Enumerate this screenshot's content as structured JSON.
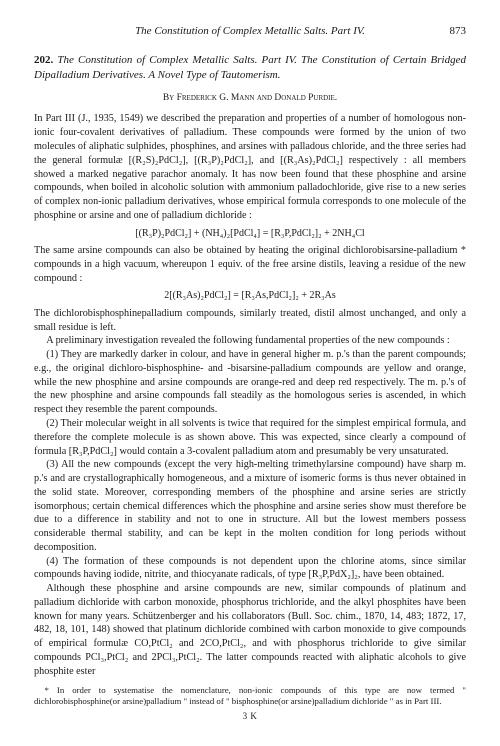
{
  "header": {
    "running_title": "The Constitution of Complex Metallic Salts. Part IV.",
    "page_number": "873"
  },
  "article": {
    "number": "202.",
    "title": "The Constitution of Complex Metallic Salts. Part IV. The Constitution of Certain Bridged Dipalladium Derivatives. A Novel Type of Tautomerism.",
    "authors": "By Frederick G. Mann and Donald Purdie."
  },
  "body": {
    "p1": "In Part III (J., 1935, 1549) we described the preparation and properties of a number of homologous non-ionic four-covalent derivatives of palladium. These compounds were formed by the union of two molecules of aliphatic sulphides, phosphines, and arsines with palladous chloride, and the three series had the general formulæ [(R₂S)₂PdCl₂], [(R₃P)₂PdCl₂], and [(R₃As)₂PdCl₂] respectively : all members showed a marked negative parachor anomaly. It has now been found that these phosphine and arsine compounds, when boiled in alcoholic solution with ammonium palladochloride, give rise to a new series of complex non-ionic palladium derivatives, whose empirical formula corresponds to one molecule of the phosphine or arsine and one of palladium dichloride :",
    "f1": "[(R₃P)₂PdCl₂] + (NH₄)₂[PdCl₄] = [R₃P,PdCl₂]₂ + 2NH₄Cl",
    "p2": "The same arsine compounds can also be obtained by heating the original dichlorobisarsine-palladium * compounds in a high vacuum, whereupon 1 equiv. of the free arsine distils, leaving a residue of the new compound :",
    "f2": "2[(R₃As)₂PdCl₂] = [R₃As,PdCl₂]₂ + 2R₃As",
    "p3": "The dichlorobisphosphinepalladium compounds, similarly treated, distil almost unchanged, and only a small residue is left.",
    "p4": "A preliminary investigation revealed the following fundamental properties of the new compounds :",
    "n1": "(1) They are markedly darker in colour, and have in general higher m. p.'s than the parent compounds; e.g., the original dichloro-bisphosphine- and -bisarsine-palladium compounds are yellow and orange, while the new phosphine and arsine compounds are orange-red and deep red respectively. The m. p.'s of the new phosphine and arsine compounds fall steadily as the homologous series is ascended, in which respect they resemble the parent compounds.",
    "n2": "(2) Their molecular weight in all solvents is twice that required for the simplest empirical formula, and therefore the complete molecule is as shown above. This was expected, since clearly a compound of formula [R₃P,PdCl₂] would contain a 3-covalent palladium atom and presumably be very unsaturated.",
    "n3": "(3) All the new compounds (except the very high-melting trimethylarsine compound) have sharp m. p.'s and are crystallographically homogeneous, and a mixture of isomeric forms is thus never obtained in the solid state. Moreover, corresponding members of the phosphine and arsine series are strictly isomorphous; certain chemical differences which the phosphine and arsine series show must therefore be due to a difference in stability and not to one in structure. All but the lowest members possess considerable thermal stability, and can be kept in the molten condition for long periods without decomposition.",
    "n4": "(4) The formation of these compounds is not dependent upon the chlorine atoms, since similar compounds having iodide, nitrite, and thiocyanate radicals, of type [R₃P,PdX₂]₂, have been obtained.",
    "p5": "Although these phosphine and arsine compounds are new, similar compounds of platinum and palladium dichloride with carbon monoxide, phosphorus trichloride, and the alkyl phosphites have been known for many years. Schützenberger and his collaborators (Bull. Soc. chim., 1870, 14, 483; 1872, 17, 482, 18, 101, 148) showed that platinum dichloride combined with carbon monoxide to give compounds of empirical formulæ CO,PtCl₂ and 2CO,PtCl₂, and with phosphorus trichloride to give similar compounds PCl₃,PtCl₂ and 2PCl₃,PtCl₂. The latter compounds reacted with aliphatic alcohols to give phosphite ester"
  },
  "footnote": {
    "text": "* In order to systematise the nomenclature, non-ionic compounds of this type are now termed \" dichlorobisphosphine(or arsine)palladium \" instead of \" bisphosphine(or arsine)palladium dichloride \" as in Part III."
  },
  "signature": "3 K"
}
